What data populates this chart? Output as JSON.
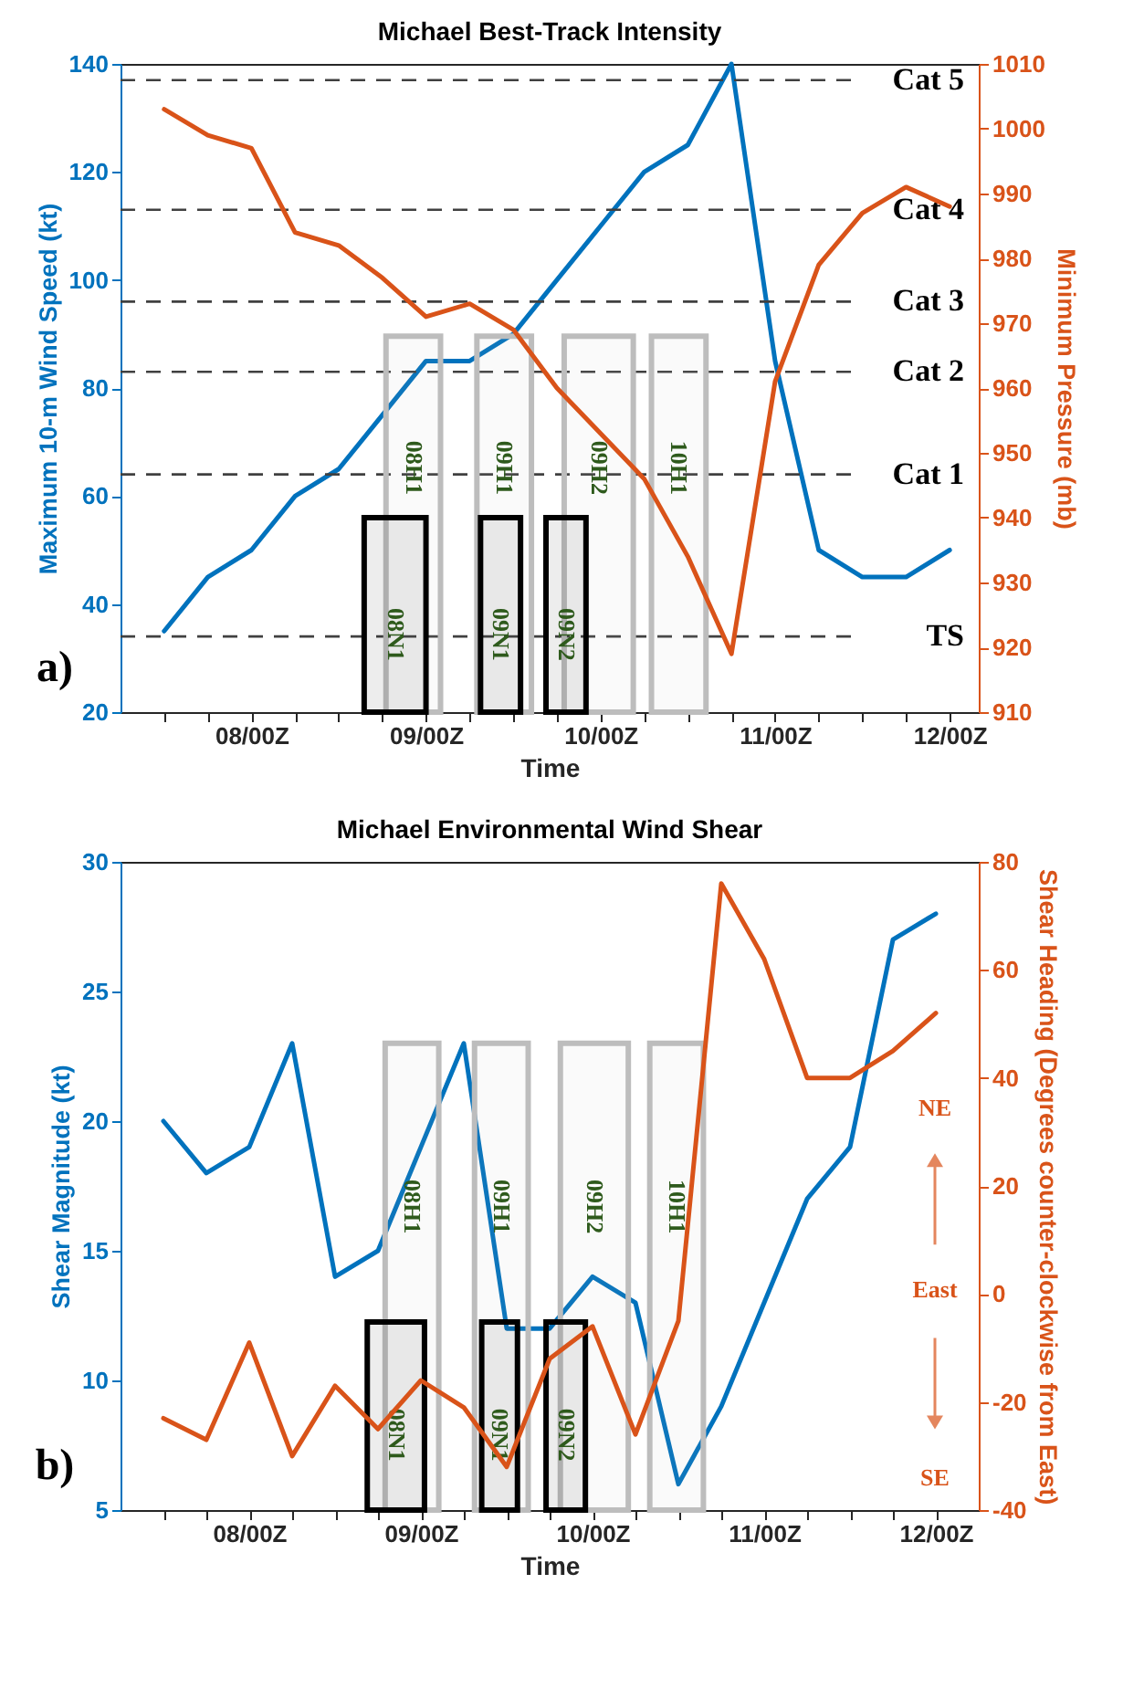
{
  "chart_data": [
    {
      "type": "line",
      "title": "Michael Best-Track Intensity",
      "xlabel": "Time",
      "ylabel": "Maximum 10-m Wind Speed (kt)",
      "y2label": "Minimum Pressure (mb)",
      "x": [
        "--10-07T12:00",
        "--10-07T18:00",
        "--10-08T00:00",
        "--10-08T06:00",
        "--10-08T12:00",
        "--10-08T18:00",
        "--10-09T00:00",
        "--10-09T06:00",
        "--10-09T12:00",
        "--10-09T18:00",
        "--10-10T00:00",
        "--10-10T06:00",
        "--10-10T12:00",
        "--10-10T18:00",
        "--10-11T00:00",
        "--10-11T06:00",
        "--10-11T12:00",
        "--10-11T18:00",
        "--10-12T00:00"
      ],
      "series": [
        {
          "color": "#0072bd",
          "values": [
            35,
            45,
            50,
            60,
            65,
            75,
            85,
            85,
            90,
            100,
            110,
            120,
            125,
            140,
            85,
            50,
            45,
            45,
            50
          ]
        },
        {
          "color": "#d95319",
          "axis": "y2",
          "values": [
            1003,
            999,
            997,
            984,
            982,
            977,
            971,
            973,
            969,
            960,
            953,
            946,
            934,
            919,
            961,
            979,
            987,
            991,
            988
          ]
        }
      ],
      "xlim": [
        "--10-07T06:00",
        "--10-12T04:00"
      ],
      "xticks": [
        {
          "value": "--10-07T12:00",
          "label": null
        },
        {
          "value": "--10-07T18:00",
          "label": null
        },
        {
          "value": "--10-08T00:00",
          "label": "08/00Z"
        },
        {
          "value": "--10-08T06:00",
          "label": null
        },
        {
          "value": "--10-08T12:00",
          "label": null
        },
        {
          "value": "--10-08T18:00",
          "label": null
        },
        {
          "value": "--10-09T00:00",
          "label": "09/00Z"
        },
        {
          "value": "--10-09T06:00",
          "label": null
        },
        {
          "value": "--10-09T12:00",
          "label": null
        },
        {
          "value": "--10-09T18:00",
          "label": null
        },
        {
          "value": "--10-10T00:00",
          "label": "10/00Z"
        },
        {
          "value": "--10-10T06:00",
          "label": null
        },
        {
          "value": "--10-10T12:00",
          "label": null
        },
        {
          "value": "--10-10T18:00",
          "label": null
        },
        {
          "value": "--10-11T00:00",
          "label": "11/00Z"
        },
        {
          "value": "--10-11T06:00",
          "label": null
        },
        {
          "value": "--10-11T12:00",
          "label": null
        },
        {
          "value": "--10-11T18:00",
          "label": null
        },
        {
          "value": "--10-12T00:00",
          "label": "12/00Z"
        }
      ],
      "ylim": [
        20,
        140
      ],
      "yticks": [
        20,
        40,
        60,
        80,
        100,
        120,
        140
      ],
      "y2lim": [
        910,
        1010
      ],
      "y2ticks": [
        910,
        920,
        930,
        940,
        950,
        960,
        970,
        980,
        990,
        1000,
        1010
      ],
      "ref_lines": [
        {
          "axis": "y",
          "value": 137,
          "label": "Cat 5",
          "color": "#404040",
          "line_style": "dashed"
        },
        {
          "axis": "y",
          "value": 113,
          "label": "Cat 4",
          "color": "#404040",
          "line_style": "dashed"
        },
        {
          "axis": "y",
          "value": 96,
          "label": "Cat 3",
          "color": "#404040",
          "line_style": "dashed"
        },
        {
          "axis": "y",
          "value": 83,
          "label": "Cat 2",
          "color": "#404040",
          "line_style": "dashed"
        },
        {
          "axis": "y",
          "value": 64,
          "label": "Cat 1",
          "color": "#404040",
          "line_style": "dashed"
        },
        {
          "axis": "y",
          "value": 34,
          "label": "TS",
          "color": "#404040",
          "line_style": "dashed"
        }
      ],
      "bands": [
        {
          "axis": "x",
          "from": "--10-08T18:30",
          "to": "--10-09T02:00",
          "label": "08H1",
          "color": "#bdbdbd"
        },
        {
          "axis": "x",
          "from": "--10-09T07:00",
          "to": "--10-09T14:30",
          "label": "09H1",
          "color": "#bdbdbd"
        },
        {
          "axis": "x",
          "from": "--10-09T19:00",
          "to": "--10-10T04:30",
          "label": "09H2",
          "color": "#bdbdbd"
        },
        {
          "axis": "x",
          "from": "--10-10T07:00",
          "to": "--10-10T14:30",
          "label": "10H1",
          "color": "#bdbdbd"
        },
        {
          "axis": "x",
          "from": "--10-08T15:30",
          "to": "--10-09T00:00",
          "label": "08N1",
          "color": "#000000"
        },
        {
          "axis": "x",
          "from": "--10-09T07:30",
          "to": "--10-09T13:00",
          "label": "09N1",
          "color": "#000000"
        },
        {
          "axis": "x",
          "from": "--10-09T16:30",
          "to": "--10-09T22:00",
          "label": "09N2",
          "color": "#000000"
        }
      ],
      "annotations": [
        "a)"
      ]
    },
    {
      "type": "line",
      "title": "Michael Environmental Wind Shear",
      "xlabel": "Time",
      "ylabel": "Shear Magnitude (kt)",
      "y2label": "Shear Heading (Degrees counter-clockwise from East)",
      "x": [
        "--10-07T12:00",
        "--10-07T18:00",
        "--10-08T00:00",
        "--10-08T06:00",
        "--10-08T12:00",
        "--10-08T18:00",
        "--10-09T00:00",
        "--10-09T06:00",
        "--10-09T12:00",
        "--10-09T18:00",
        "--10-10T00:00",
        "--10-10T06:00",
        "--10-10T12:00",
        "--10-10T18:00",
        "--10-11T00:00",
        "--10-11T06:00",
        "--10-11T12:00",
        "--10-11T18:00",
        "--10-12T00:00"
      ],
      "series": [
        {
          "color": "#0072bd",
          "values": [
            20,
            18,
            19,
            23,
            14,
            15,
            19,
            23,
            12,
            12,
            14,
            13,
            6,
            9,
            13,
            17,
            19,
            27,
            28
          ]
        },
        {
          "color": "#d95319",
          "axis": "y2",
          "values": [
            -23,
            -27,
            -9,
            -30,
            -17,
            -25,
            -16,
            -21,
            -32,
            -12,
            -6,
            -26,
            -5,
            76,
            62,
            40,
            40,
            45,
            52
          ]
        }
      ],
      "xlim": [
        "--10-07T06:00",
        "--10-12T06:00"
      ],
      "xticks": [
        {
          "value": "--10-07T12:00",
          "label": null
        },
        {
          "value": "--10-07T18:00",
          "label": null
        },
        {
          "value": "--10-08T00:00",
          "label": "08/00Z"
        },
        {
          "value": "--10-08T06:00",
          "label": null
        },
        {
          "value": "--10-08T12:00",
          "label": null
        },
        {
          "value": "--10-08T18:00",
          "label": null
        },
        {
          "value": "--10-09T00:00",
          "label": "09/00Z"
        },
        {
          "value": "--10-09T06:00",
          "label": null
        },
        {
          "value": "--10-09T12:00",
          "label": null
        },
        {
          "value": "--10-09T18:00",
          "label": null
        },
        {
          "value": "--10-10T00:00",
          "label": "10/00Z"
        },
        {
          "value": "--10-10T06:00",
          "label": null
        },
        {
          "value": "--10-10T12:00",
          "label": null
        },
        {
          "value": "--10-10T18:00",
          "label": null
        },
        {
          "value": "--10-11T00:00",
          "label": "11/00Z"
        },
        {
          "value": "--10-11T06:00",
          "label": null
        },
        {
          "value": "--10-11T12:00",
          "label": null
        },
        {
          "value": "--10-11T18:00",
          "label": null
        },
        {
          "value": "--10-12T00:00",
          "label": "12/00Z"
        }
      ],
      "ylim": [
        5,
        30
      ],
      "yticks": [
        5,
        10,
        15,
        20,
        25,
        30
      ],
      "y2lim": [
        -40,
        80
      ],
      "y2ticks": [
        -40,
        -20,
        0,
        20,
        40,
        60,
        80
      ],
      "bands": [
        {
          "axis": "x",
          "from": "--10-08T19:00",
          "to": "--10-09T02:30",
          "label": "08H1",
          "color": "#bdbdbd"
        },
        {
          "axis": "x",
          "from": "--10-09T07:30",
          "to": "--10-09T15:00",
          "label": "09H1",
          "color": "#bdbdbd"
        },
        {
          "axis": "x",
          "from": "--10-09T19:30",
          "to": "--10-10T05:00",
          "label": "09H2",
          "color": "#bdbdbd"
        },
        {
          "axis": "x",
          "from": "--10-10T08:00",
          "to": "--10-10T15:30",
          "label": "10H1",
          "color": "#bdbdbd"
        },
        {
          "axis": "x",
          "from": "--10-08T16:30",
          "to": "--10-09T00:30",
          "label": "08N1",
          "color": "#000000"
        },
        {
          "axis": "x",
          "from": "--10-09T08:30",
          "to": "--10-09T13:30",
          "label": "09N1",
          "color": "#000000"
        },
        {
          "axis": "x",
          "from": "--10-09T17:30",
          "to": "--10-09T23:00",
          "label": "09N2",
          "color": "#000000"
        }
      ],
      "annotations": [
        "NE",
        "East",
        "SE",
        "b)"
      ]
    }
  ]
}
